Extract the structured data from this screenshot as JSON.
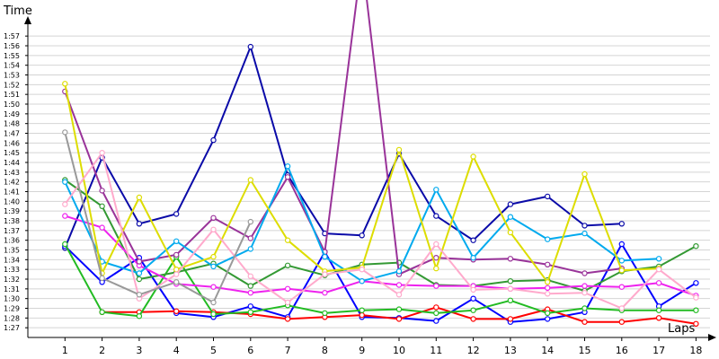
{
  "chart_data": {
    "type": "line",
    "ylabel": "Time",
    "xlabel": "Laps",
    "x_ticks": [
      "1",
      "2",
      "3",
      "4",
      "5",
      "6",
      "7",
      "8",
      "9",
      "10",
      "11",
      "12",
      "13",
      "14",
      "15",
      "16",
      "17",
      "18"
    ],
    "y_ticks": [
      "1:27",
      "1:28",
      "1:29",
      "1:30",
      "1:31",
      "1:32",
      "1:33",
      "1:34",
      "1:35",
      "1:36",
      "1:37",
      "1:38",
      "1:39",
      "1:40",
      "1:41",
      "1:42",
      "1:43",
      "1:44",
      "1:45",
      "1:46",
      "1:47",
      "1:48",
      "1:49",
      "1:50",
      "1:51",
      "1:52",
      "1:53",
      "1:54",
      "1:55",
      "1:56",
      "1:57"
    ],
    "y_unit": "seconds",
    "ylim": [
      86,
      120
    ],
    "xlim": [
      0,
      18.3
    ],
    "grid": true,
    "series": [
      {
        "color": "#0a0aa8",
        "values": [
          95.2,
          104.5,
          97.7,
          98.7,
          106.3,
          115.9,
          102.7,
          96.7,
          96.5,
          104.9,
          98.5,
          96.0,
          99.7,
          100.5,
          97.5,
          97.7,
          null,
          null
        ]
      },
      {
        "color": "#0000ff",
        "values": [
          95.4,
          91.7,
          94.2,
          88.5,
          88.1,
          89.2,
          88.1,
          94.8,
          88.1,
          88.0,
          87.7,
          90.0,
          87.6,
          87.9,
          88.6,
          95.6,
          89.2,
          91.6
        ]
      },
      {
        "color": "#ff0000",
        "values": [
          null,
          88.6,
          88.6,
          88.7,
          88.6,
          88.4,
          87.9,
          88.1,
          88.3,
          87.9,
          89.1,
          87.9,
          87.9,
          88.9,
          87.6,
          87.6,
          88.0,
          87.4
        ]
      },
      {
        "color": "#22bb22",
        "values": [
          95.6,
          88.6,
          88.2,
          94.3,
          88.4,
          88.6,
          89.3,
          88.5,
          88.8,
          88.9,
          88.5,
          88.8,
          89.8,
          88.5,
          89.0,
          88.8,
          88.8,
          88.8
        ]
      },
      {
        "color": "#339933",
        "values": [
          102.2,
          99.5,
          92.0,
          92.7,
          93.6,
          91.3,
          93.4,
          92.4,
          93.5,
          93.7,
          91.4,
          91.3,
          91.8,
          91.9,
          90.8,
          92.8,
          93.3,
          95.4
        ]
      },
      {
        "color": "#ee22ee",
        "values": [
          98.5,
          97.3,
          93.4,
          91.5,
          91.2,
          90.6,
          91.0,
          90.6,
          91.8,
          91.4,
          91.3,
          91.3,
          91.0,
          91.1,
          91.3,
          91.2,
          91.6,
          90.3
        ]
      },
      {
        "color": "#993399",
        "values": [
          111.3,
          101.1,
          93.8,
          94.5,
          98.3,
          96.2,
          102.5,
          94.8,
          125.0,
          92.5,
          94.2,
          94.0,
          94.1,
          93.5,
          92.6,
          93.1,
          null,
          null
        ]
      },
      {
        "color": "#00aaee",
        "values": [
          102.0,
          93.8,
          92.6,
          95.9,
          93.3,
          95.1,
          103.6,
          94.3,
          91.8,
          92.8,
          101.2,
          94.2,
          98.4,
          96.1,
          96.7,
          93.9,
          94.1,
          null
        ]
      },
      {
        "color": "#dddd00",
        "values": [
          112.1,
          92.6,
          100.4,
          93.0,
          94.3,
          102.2,
          96.0,
          92.8,
          93.2,
          105.3,
          93.1,
          104.6,
          96.8,
          91.7,
          102.8,
          92.9,
          93.1,
          null
        ]
      },
      {
        "color": "#ffaacc",
        "values": [
          99.7,
          105.0,
          90.0,
          92.5,
          97.1,
          92.3,
          89.6,
          92.5,
          93.0,
          90.4,
          95.6,
          90.9,
          91.0,
          90.5,
          90.6,
          89.0,
          93.0,
          90.1
        ]
      },
      {
        "color": "#999999",
        "values": [
          107.1,
          92.1,
          90.4,
          91.7,
          89.6,
          97.9,
          null,
          null,
          null,
          null,
          null,
          null,
          null,
          null,
          null,
          null,
          null,
          null
        ]
      }
    ]
  }
}
